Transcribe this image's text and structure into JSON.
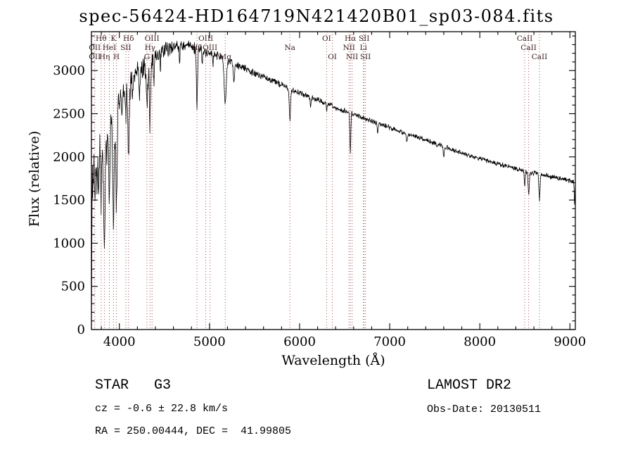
{
  "chart_data": {
    "type": "line",
    "title": "spec-56424-HD164719N421420B01_sp03-084.fits",
    "xlabel": "Wavelength (Å)",
    "ylabel": "Flux (relative)",
    "xlim": [
      3690,
      9060
    ],
    "ylim": [
      0,
      3450
    ],
    "x_ticks": [
      4000,
      5000,
      6000,
      7000,
      8000,
      9000
    ],
    "y_ticks": [
      0,
      500,
      1000,
      1500,
      2000,
      2500,
      3000
    ],
    "x_minor_step": 200,
    "y_minor_step": 100,
    "grid": false,
    "line_color": "#000000",
    "marker_line_color": "#a05050",
    "marker_label_color": "#3d2020",
    "continuum": [
      [
        3690,
        1600
      ],
      [
        3700,
        1800
      ],
      [
        3740,
        1950
      ],
      [
        3780,
        2080
      ],
      [
        3820,
        2180
      ],
      [
        3860,
        2300
      ],
      [
        3900,
        2400
      ],
      [
        3950,
        2520
      ],
      [
        4000,
        2640
      ],
      [
        4060,
        2760
      ],
      [
        4120,
        2880
      ],
      [
        4200,
        3000
      ],
      [
        4300,
        3080
      ],
      [
        4400,
        3170
      ],
      [
        4500,
        3240
      ],
      [
        4600,
        3290
      ],
      [
        4700,
        3295
      ],
      [
        4800,
        3270
      ],
      [
        4900,
        3245
      ],
      [
        5000,
        3210
      ],
      [
        5100,
        3170
      ],
      [
        5200,
        3120
      ],
      [
        5300,
        3070
      ],
      [
        5400,
        3020
      ],
      [
        5500,
        2970
      ],
      [
        5600,
        2925
      ],
      [
        5700,
        2880
      ],
      [
        5800,
        2835
      ],
      [
        5900,
        2785
      ],
      [
        6000,
        2740
      ],
      [
        6100,
        2700
      ],
      [
        6200,
        2660
      ],
      [
        6300,
        2615
      ],
      [
        6400,
        2570
      ],
      [
        6500,
        2530
      ],
      [
        6600,
        2490
      ],
      [
        6700,
        2455
      ],
      [
        6800,
        2420
      ],
      [
        6900,
        2380
      ],
      [
        7000,
        2340
      ],
      [
        7100,
        2300
      ],
      [
        7200,
        2265
      ],
      [
        7300,
        2230
      ],
      [
        7400,
        2195
      ],
      [
        7500,
        2155
      ],
      [
        7600,
        2115
      ],
      [
        7700,
        2080
      ],
      [
        7800,
        2045
      ],
      [
        7900,
        2010
      ],
      [
        8000,
        1980
      ],
      [
        8100,
        1950
      ],
      [
        8200,
        1920
      ],
      [
        8300,
        1890
      ],
      [
        8400,
        1860
      ],
      [
        8500,
        1835
      ],
      [
        8600,
        1810
      ],
      [
        8700,
        1790
      ],
      [
        8800,
        1768
      ],
      [
        8900,
        1748
      ],
      [
        9000,
        1728
      ],
      [
        9060,
        1700
      ]
    ],
    "absorption_lines": [
      {
        "wl": 3727,
        "depth": 420,
        "sigma": 5
      },
      {
        "wl": 3750,
        "depth": 380,
        "sigma": 5
      },
      {
        "wl": 3771,
        "depth": 450,
        "sigma": 5
      },
      {
        "wl": 3798,
        "depth": 650,
        "sigma": 6
      },
      {
        "wl": 3820,
        "depth": 350,
        "sigma": 5
      },
      {
        "wl": 3835,
        "depth": 1300,
        "sigma": 7
      },
      {
        "wl": 3860,
        "depth": 300,
        "sigma": 4
      },
      {
        "wl": 3889,
        "depth": 850,
        "sigma": 7
      },
      {
        "wl": 3934,
        "depth": 1350,
        "sigma": 8
      },
      {
        "wl": 3968,
        "depth": 1100,
        "sigma": 8
      },
      {
        "wl": 4026,
        "depth": 250,
        "sigma": 4
      },
      {
        "wl": 4072,
        "depth": 280,
        "sigma": 4
      },
      {
        "wl": 4102,
        "depth": 780,
        "sigma": 8
      },
      {
        "wl": 4144,
        "depth": 220,
        "sigma": 4
      },
      {
        "wl": 4226,
        "depth": 320,
        "sigma": 5
      },
      {
        "wl": 4306,
        "depth": 480,
        "sigma": 9
      },
      {
        "wl": 4340,
        "depth": 750,
        "sigma": 7
      },
      {
        "wl": 4383,
        "depth": 330,
        "sigma": 5
      },
      {
        "wl": 4457,
        "depth": 180,
        "sigma": 4
      },
      {
        "wl": 4668,
        "depth": 200,
        "sigma": 3
      },
      {
        "wl": 4861,
        "depth": 680,
        "sigma": 6
      },
      {
        "wl": 4920,
        "depth": 180,
        "sigma": 4
      },
      {
        "wl": 5040,
        "depth": 150,
        "sigma": 3
      },
      {
        "wl": 5175,
        "depth": 520,
        "sigma": 11
      },
      {
        "wl": 5270,
        "depth": 220,
        "sigma": 7
      },
      {
        "wl": 5893,
        "depth": 380,
        "sigma": 7
      },
      {
        "wl": 6122,
        "depth": 120,
        "sigma": 5
      },
      {
        "wl": 6300,
        "depth": 90,
        "sigma": 4
      },
      {
        "wl": 6563,
        "depth": 470,
        "sigma": 5
      },
      {
        "wl": 6867,
        "depth": 120,
        "sigma": 5
      },
      {
        "wl": 7190,
        "depth": 80,
        "sigma": 6
      },
      {
        "wl": 7600,
        "depth": 130,
        "sigma": 5
      },
      {
        "wl": 8498,
        "depth": 170,
        "sigma": 5
      },
      {
        "wl": 8542,
        "depth": 280,
        "sigma": 6
      },
      {
        "wl": 8662,
        "depth": 300,
        "sigma": 6
      },
      {
        "wl": 9052,
        "depth": 250,
        "sigma": 4
      }
    ],
    "noise": {
      "base": 35,
      "blue_extra": 300,
      "decay": 600,
      "seed": 20130511
    },
    "spectral_markers": [
      {
        "wl": 3727,
        "name": "OII"
      },
      {
        "wl": 3798,
        "name": "Hθ"
      },
      {
        "wl": 3835,
        "name": "Hη"
      },
      {
        "wl": 3889,
        "name": "HeI"
      },
      {
        "wl": 3934,
        "name": "K"
      },
      {
        "wl": 3968,
        "name": "H"
      },
      {
        "wl": 4072,
        "name": "SII"
      },
      {
        "wl": 4102,
        "name": "Hδ"
      },
      {
        "wl": 4306,
        "name": "G"
      },
      {
        "wl": 4340,
        "name": "Hγ"
      },
      {
        "wl": 4363,
        "name": "OIII"
      },
      {
        "wl": 4861,
        "name": "Hβ"
      },
      {
        "wl": 4959,
        "name": "OIII"
      },
      {
        "wl": 5007,
        "name": "OIII"
      },
      {
        "wl": 5175,
        "name": "Mg"
      },
      {
        "wl": 5893,
        "name": "Na"
      },
      {
        "wl": 6300,
        "name": "OI"
      },
      {
        "wl": 6364,
        "name": "OI"
      },
      {
        "wl": 6548,
        "name": "NII"
      },
      {
        "wl": 6563,
        "name": "Hα"
      },
      {
        "wl": 6583,
        "name": "NII"
      },
      {
        "wl": 6708,
        "name": "Li"
      },
      {
        "wl": 6716,
        "name": "SII"
      },
      {
        "wl": 6731,
        "name": "SII"
      },
      {
        "wl": 8498,
        "name": "CaII"
      },
      {
        "wl": 8542,
        "name": "CaII"
      },
      {
        "wl": 8662,
        "name": "CaII"
      }
    ],
    "marker_labels": [
      {
        "text": "Hθ",
        "wl": 3798,
        "row": 0
      },
      {
        "text": "K",
        "wl": 3934,
        "row": 0
      },
      {
        "text": "Hδ",
        "wl": 4102,
        "row": 0
      },
      {
        "text": "OII",
        "wl": 3727,
        "row": 1
      },
      {
        "text": "HeI",
        "wl": 3889,
        "row": 1
      },
      {
        "text": "SII",
        "wl": 4072,
        "row": 1
      },
      {
        "text": "OII",
        "wl": 3727,
        "row": 2
      },
      {
        "text": "Hη",
        "wl": 3835,
        "row": 2
      },
      {
        "text": "H",
        "wl": 3968,
        "row": 2
      },
      {
        "text": "OIII",
        "wl": 4363,
        "row": 0
      },
      {
        "text": "Hγ",
        "wl": 4340,
        "row": 1
      },
      {
        "text": "G",
        "wl": 4306,
        "row": 2
      },
      {
        "text": "OIII",
        "wl": 4959,
        "row": 0
      },
      {
        "text": "Hβ",
        "wl": 4861,
        "row": 1
      },
      {
        "text": "OIII",
        "wl": 5007,
        "row": 1
      },
      {
        "text": "Mg",
        "wl": 5175,
        "row": 2
      },
      {
        "text": "Na",
        "wl": 5893,
        "row": 1
      },
      {
        "text": "OI",
        "wl": 6300,
        "row": 0
      },
      {
        "text": "OI",
        "wl": 6364,
        "row": 2
      },
      {
        "text": "Hα",
        "wl": 6563,
        "row": 0
      },
      {
        "text": "SII",
        "wl": 6716,
        "row": 0
      },
      {
        "text": "NII",
        "wl": 6548,
        "row": 1
      },
      {
        "text": "Li",
        "wl": 6708,
        "row": 1
      },
      {
        "text": "NII",
        "wl": 6583,
        "row": 2
      },
      {
        "text": "SII",
        "wl": 6731,
        "row": 2
      },
      {
        "text": "CaII",
        "wl": 8498,
        "row": 0
      },
      {
        "text": "CaII",
        "wl": 8542,
        "row": 1
      },
      {
        "text": "CaII",
        "wl": 8662,
        "row": 2
      }
    ]
  },
  "annotations": {
    "class_line": "STAR   G3",
    "survey": "LAMOST DR2",
    "cz_line": "cz = -0.6 ± 22.8 km/s",
    "obs_date": "Obs-Date: 20130511",
    "radec_line": "RA = 250.00444, DEC =  41.99805"
  }
}
